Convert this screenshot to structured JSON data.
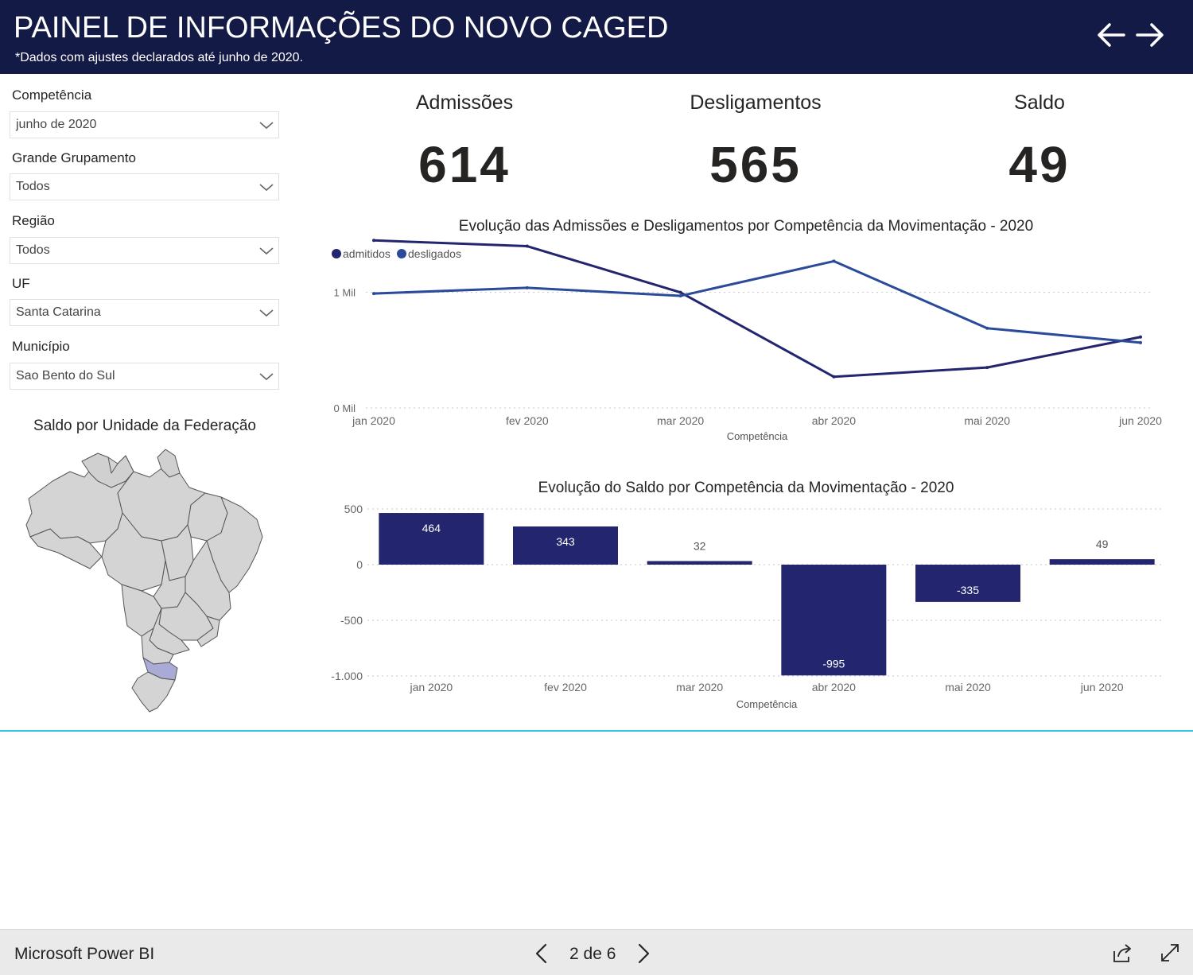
{
  "header": {
    "title": "PAINEL DE INFORMAÇÕES DO NOVO CAGED",
    "subtitle": "*Dados com ajustes declarados até junho de 2020.",
    "nav_back_icon": "arrow-left-icon",
    "nav_forward_icon": "arrow-right-icon"
  },
  "colors": {
    "header_bg": "#141a46",
    "admitidos": "#23266e",
    "desligados": "#2a4a9a",
    "bar": "#23266e",
    "divider": "#34c3e6",
    "map_fill": "#d4d4d4",
    "map_highlight": "#a9aad6"
  },
  "filters": [
    {
      "label": "Competência",
      "value": "junho de 2020"
    },
    {
      "label": "Grande Grupamento",
      "value": "Todos"
    },
    {
      "label": "Região",
      "value": "Todos"
    },
    {
      "label": "UF",
      "value": "Santa Catarina"
    },
    {
      "label": "Município",
      "value": "Sao Bento do Sul"
    }
  ],
  "map": {
    "title": "Saldo por Unidade da Federação",
    "highlighted_state": "Santa Catarina"
  },
  "kpis": {
    "admissoes": {
      "label": "Admissões",
      "value": "614"
    },
    "desligamentos": {
      "label": "Desligamentos",
      "value": "565"
    },
    "saldo": {
      "label": "Saldo",
      "value": "49"
    }
  },
  "chart_data": [
    {
      "type": "line",
      "title": "Evolução das Admissões e Desligamentos por Competência da Movimentação - 2020",
      "xlabel": "Competência",
      "ylabel": "",
      "categories": [
        "jan 2020",
        "fev 2020",
        "mar 2020",
        "abr 2020",
        "mai 2020",
        "jun 2020"
      ],
      "series": [
        {
          "name": "admitidos",
          "values": [
            1450,
            1400,
            1000,
            270,
            350,
            614
          ]
        },
        {
          "name": "desligados",
          "values": [
            990,
            1040,
            970,
            1270,
            690,
            565
          ]
        }
      ],
      "yticks": [
        {
          "value": 0,
          "label": "0 Mil"
        },
        {
          "value": 1000,
          "label": "1 Mil"
        }
      ],
      "ylim": [
        0,
        1500
      ],
      "legend": "top-left"
    },
    {
      "type": "bar",
      "title": "Evolução do Saldo por Competência da Movimentação - 2020",
      "xlabel": "Competência",
      "ylabel": "",
      "categories": [
        "jan 2020",
        "fev 2020",
        "mar 2020",
        "abr 2020",
        "mai 2020",
        "jun 2020"
      ],
      "values": [
        464,
        343,
        32,
        -995,
        -335,
        49
      ],
      "labels": [
        "464",
        "343",
        "32",
        "-995",
        "-335",
        "49"
      ],
      "yticks": [
        {
          "value": 500,
          "label": "500"
        },
        {
          "value": 0,
          "label": "0"
        },
        {
          "value": -500,
          "label": "-500"
        },
        {
          "value": -1000,
          "label": "-1.000"
        }
      ],
      "ylim": [
        -1000,
        500
      ]
    }
  ],
  "footer": {
    "brand": "Microsoft Power BI",
    "pager": "2 de 6",
    "prev_icon": "chevron-left-icon",
    "next_icon": "chevron-right-icon",
    "share_icon": "share-icon",
    "fullscreen_icon": "fullscreen-icon"
  }
}
